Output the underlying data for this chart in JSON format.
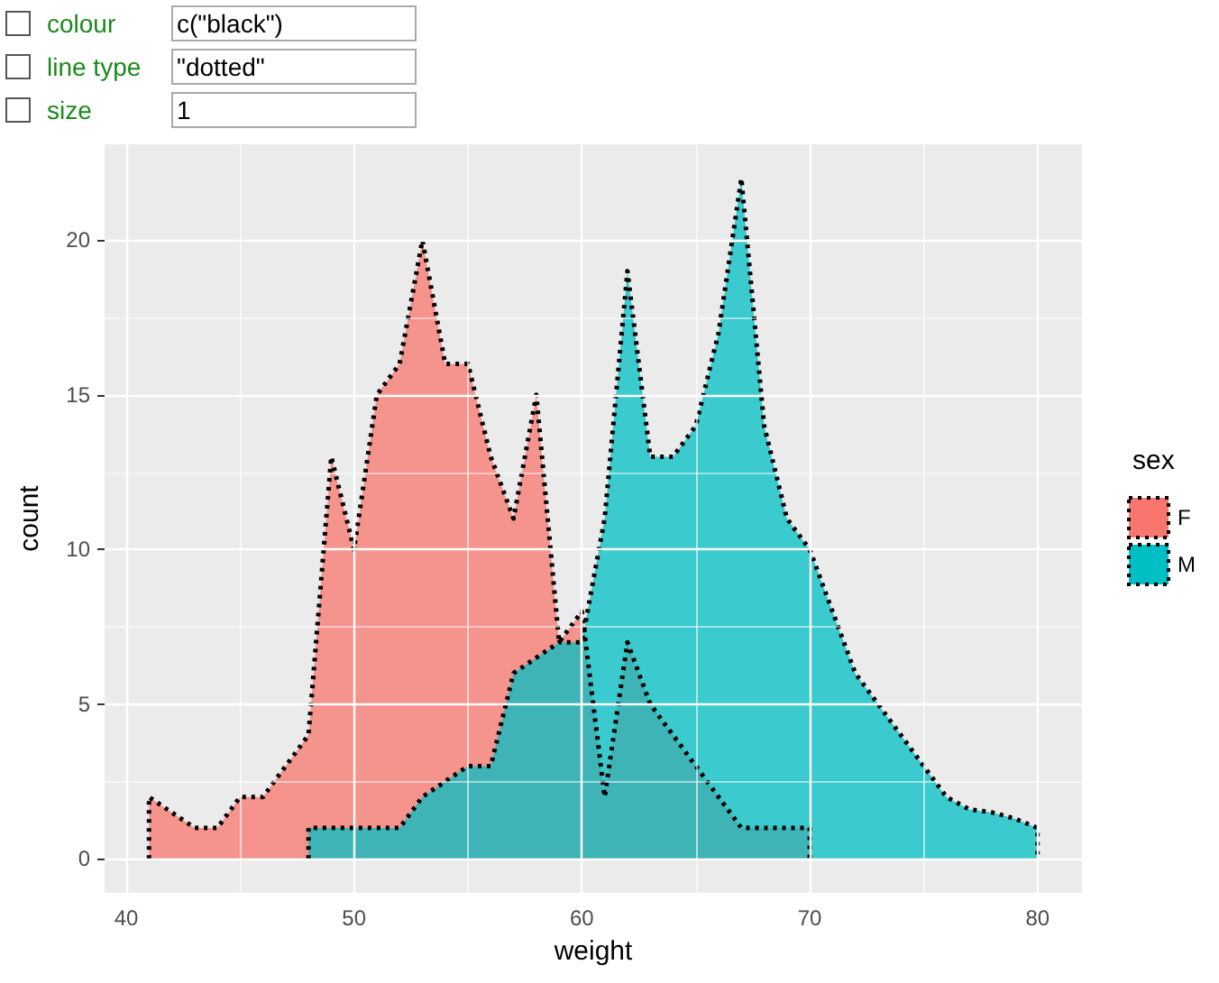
{
  "chart_data": {
    "type": "area",
    "xlabel": "weight",
    "ylabel": "count",
    "legend_title": "sex",
    "xlim": [
      39.05,
      81.95
    ],
    "ylim": [
      -1.1,
      23.1
    ],
    "xticks": [
      40,
      50,
      60,
      70,
      80
    ],
    "yticks": [
      0,
      5,
      10,
      15,
      20
    ],
    "grid": true,
    "legend": "right",
    "line_style": "dotted",
    "marker": "none",
    "annotations": [
      "colour",
      "c(\"black\")",
      "line type",
      "\"dotted\"",
      "size",
      "1"
    ],
    "series": [
      {
        "name": "F",
        "color": "#f8766d",
        "x": [
          41,
          41,
          42,
          43,
          44,
          45,
          46,
          47,
          48,
          49,
          50,
          51,
          52,
          53,
          54,
          55,
          56,
          57,
          58,
          59,
          60,
          61,
          62,
          63,
          64,
          65,
          66,
          67,
          68,
          69,
          70,
          70
        ],
        "values": [
          0,
          2,
          1.5,
          1,
          1,
          2,
          2,
          3,
          4,
          13,
          10,
          15,
          16,
          20,
          16,
          16,
          13,
          11,
          15,
          7,
          8,
          2,
          7,
          5,
          4,
          3,
          2,
          1,
          1,
          1,
          1,
          0
        ]
      },
      {
        "name": "M",
        "color": "#00bfc4",
        "x": [
          48,
          48,
          49,
          50,
          51,
          52,
          53,
          54,
          55,
          56,
          57,
          58,
          59,
          60,
          61,
          62,
          63,
          64,
          65,
          66,
          67,
          68,
          69,
          70,
          71,
          72,
          73,
          74,
          75,
          76,
          77,
          78,
          79,
          80,
          80
        ],
        "values": [
          0,
          1,
          1,
          1,
          1,
          1,
          2,
          2.5,
          3,
          3,
          6,
          6.5,
          7,
          7,
          11,
          19,
          13,
          13,
          14,
          17,
          22,
          14,
          11,
          10,
          8,
          6,
          5,
          4,
          3,
          2,
          1.6,
          1.5,
          1.3,
          1,
          0
        ]
      }
    ]
  }
}
